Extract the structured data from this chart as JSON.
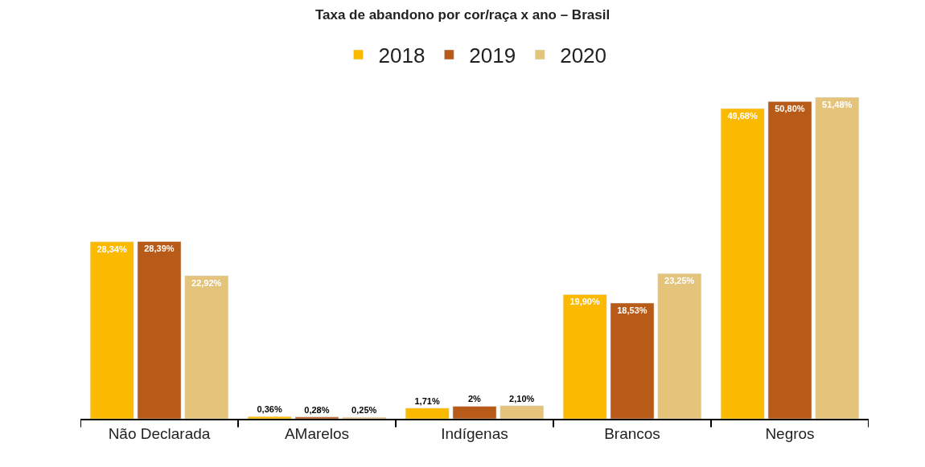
{
  "chart_data": {
    "type": "bar",
    "title": "Taxa de abandono por cor/raça x ano – Brasil",
    "categories": [
      "Não Declarada",
      "AMarelos",
      "Indígenas",
      "Brancos",
      "Negros"
    ],
    "series": [
      {
        "name": "2018",
        "color": "#fbb900",
        "values": [
          28.34,
          0.36,
          1.71,
          19.9,
          49.68
        ],
        "value_labels": [
          "28,34%",
          "0,36%",
          "1,71%",
          "19,90%",
          "49,68%"
        ]
      },
      {
        "name": "2019",
        "color": "#b85a18",
        "values": [
          28.39,
          0.28,
          2,
          18.53,
          50.8
        ],
        "value_labels": [
          "28,39%",
          "0,28%",
          "2%",
          "18,53%",
          "50,80%"
        ]
      },
      {
        "name": "2020",
        "color": "#e4c37b",
        "values": [
          22.92,
          0.25,
          2.1,
          23.25,
          51.48
        ],
        "value_labels": [
          "22,92%",
          "0,25%",
          "2,10%",
          "23,25%",
          "51,48%"
        ]
      }
    ],
    "legend": "top"
  }
}
